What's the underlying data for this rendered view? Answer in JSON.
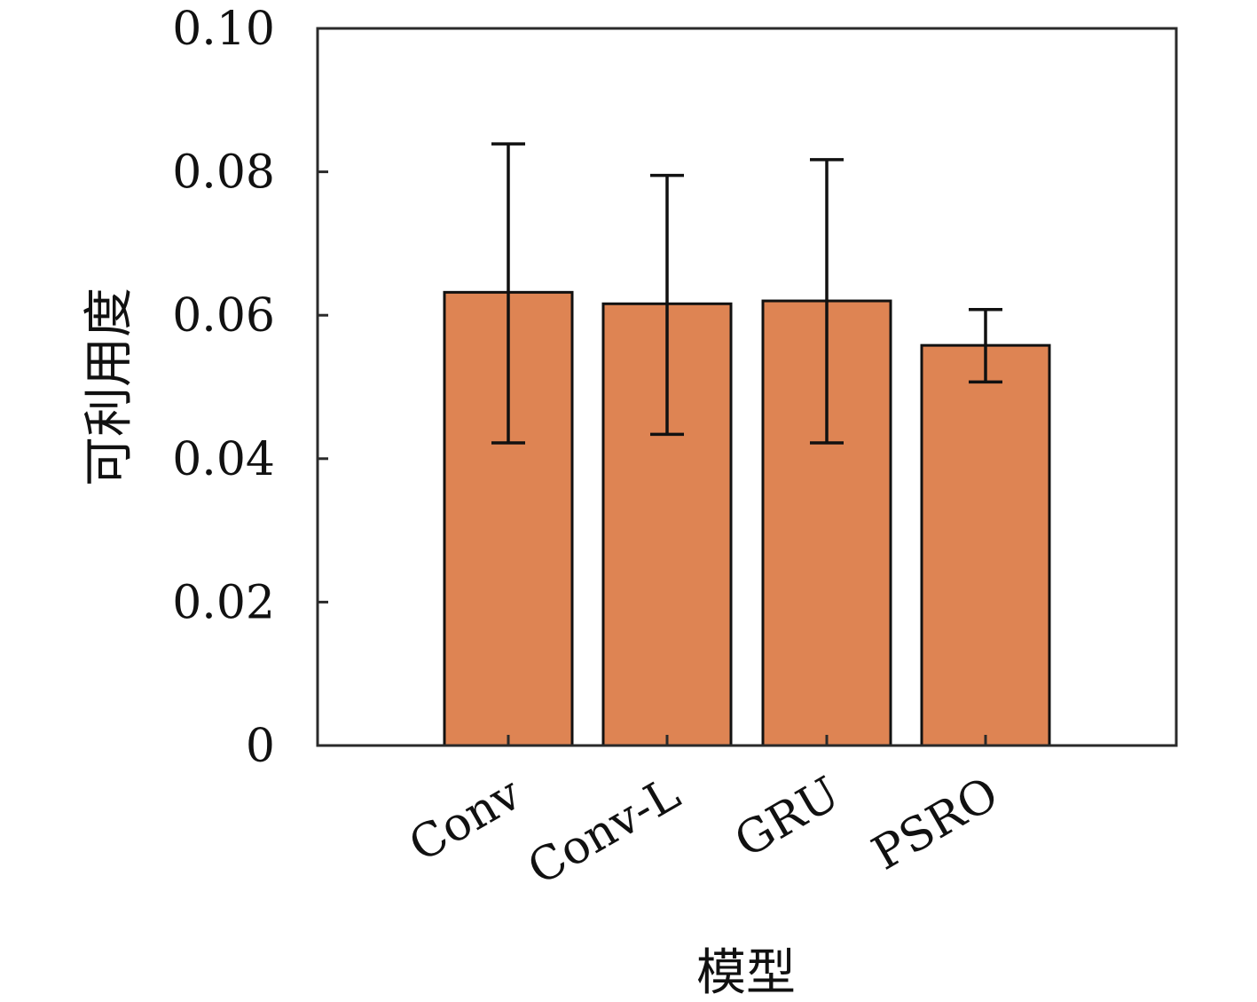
{
  "chart_data": {
    "type": "bar",
    "categories": [
      "Conv",
      "Conv-L",
      "GRU",
      "PSRO"
    ],
    "series": [
      {
        "values": [
          0.0632,
          0.0616,
          0.062,
          0.0558
        ],
        "error_low": [
          0.0422,
          0.0434,
          0.0422,
          0.0507
        ],
        "error_high": [
          0.0839,
          0.0795,
          0.0817,
          0.0608
        ]
      }
    ],
    "xlabel": "模型",
    "ylabel": "可利用度",
    "ylim": [
      0,
      0.1
    ],
    "yticks": [
      "0",
      "0.02",
      "0.04",
      "0.06",
      "0.08",
      "0.10"
    ],
    "ytick_values": [
      0,
      0.02,
      0.04,
      0.06,
      0.08,
      0.1
    ],
    "grid": false,
    "bar_color": "#DE8453",
    "bar_edge_color": "#111111",
    "error_bar_color": "#111111"
  }
}
